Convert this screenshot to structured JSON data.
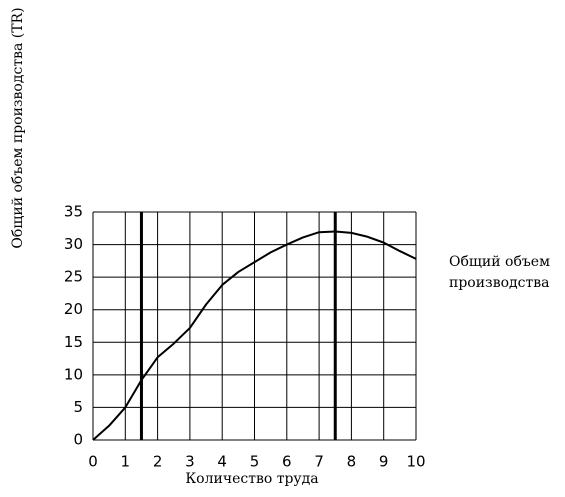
{
  "chart_data": {
    "type": "line",
    "x_label": "Количество труда",
    "y_label": "Общий объем производства (TR)",
    "x": [
      0,
      0.5,
      1,
      1.5,
      2,
      2.5,
      3,
      3.5,
      4,
      4.5,
      5,
      5.5,
      6,
      6.5,
      7,
      7.5,
      8,
      8.5,
      9,
      9.5,
      10
    ],
    "series": [
      {
        "name": "Общий объем производства",
        "color": "#000000",
        "values": [
          0,
          2.2,
          5,
          9.2,
          12.7,
          14.8,
          17.2,
          20.8,
          23.8,
          25.8,
          27.3,
          28.8,
          30,
          31.1,
          31.9,
          32,
          31.8,
          31.2,
          30.3,
          29,
          27.8
        ]
      }
    ],
    "vlines": [
      1.5,
      7.5
    ],
    "xlim": [
      0,
      10
    ],
    "xticks": [
      0,
      1,
      2,
      3,
      4,
      5,
      6,
      7,
      8,
      9,
      10
    ],
    "ylim": [
      0,
      35
    ],
    "yticks": [
      0,
      5,
      10,
      15,
      20,
      25,
      30,
      35
    ],
    "grid": true
  }
}
